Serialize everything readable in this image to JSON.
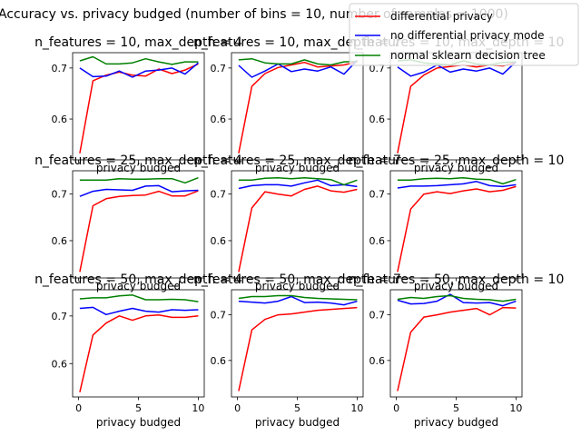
{
  "figure_title": "Accuracy vs. privacy budged (number of bins = 10, number of samples = 1000)",
  "legend": {
    "placement": "top-right",
    "entries": [
      {
        "label": "differential privacy",
        "color": "#ff0000"
      },
      {
        "label": "no differential privacy mode",
        "color": "#0000ff"
      },
      {
        "label": "normal sklearn decision tree",
        "color": "#008000"
      }
    ]
  },
  "colors": {
    "dp": "#ff0000",
    "nodp": "#0000ff",
    "sk": "#008000"
  },
  "chart_data": [
    {
      "type": "line",
      "title": "n_features = 10, max_depth = 4",
      "xlabel": "privacy budged",
      "ylabel": "",
      "xlim": [
        -0.5,
        10.5
      ],
      "ylim": [
        0.52,
        0.73
      ],
      "yticks": [
        0.6,
        0.7
      ],
      "xticks": [
        0,
        5,
        10
      ],
      "x": [
        0.1,
        1.2,
        2.3,
        3.4,
        4.5,
        5.6,
        6.7,
        7.8,
        8.9,
        10.0
      ],
      "series": [
        {
          "name": "differential privacy",
          "values": [
            0.533,
            0.675,
            0.686,
            0.692,
            0.686,
            0.684,
            0.698,
            0.689,
            0.696,
            0.708
          ]
        },
        {
          "name": "no differential privacy mode",
          "values": [
            0.7,
            0.683,
            0.684,
            0.694,
            0.682,
            0.694,
            0.696,
            0.7,
            0.688,
            0.71
          ]
        },
        {
          "name": "normal sklearn decision tree",
          "values": [
            0.714,
            0.722,
            0.708,
            0.708,
            0.71,
            0.718,
            0.712,
            0.707,
            0.712,
            0.712
          ]
        }
      ]
    },
    {
      "type": "line",
      "title": "n_features = 10, max_depth = 7",
      "xlabel": "privacy budged",
      "ylabel": "",
      "xlim": [
        -0.5,
        10.5
      ],
      "ylim": [
        0.52,
        0.73
      ],
      "yticks": [
        0.6,
        0.7
      ],
      "xticks": [
        0,
        5,
        10
      ],
      "x": [
        0.1,
        1.2,
        2.3,
        3.4,
        4.5,
        5.6,
        6.7,
        7.8,
        8.9,
        10.0
      ],
      "series": [
        {
          "name": "differential privacy",
          "values": [
            0.533,
            0.664,
            0.689,
            0.701,
            0.706,
            0.711,
            0.702,
            0.704,
            0.706,
            0.712
          ]
        },
        {
          "name": "no differential privacy mode",
          "values": [
            0.705,
            0.682,
            0.694,
            0.708,
            0.693,
            0.698,
            0.694,
            0.702,
            0.688,
            0.715
          ]
        },
        {
          "name": "normal sklearn decision tree",
          "values": [
            0.716,
            0.718,
            0.71,
            0.708,
            0.708,
            0.716,
            0.708,
            0.706,
            0.712,
            0.713
          ]
        }
      ]
    },
    {
      "type": "line",
      "title": "n_features = 10, max_depth = 10",
      "xlabel": "privacy budged",
      "ylabel": "",
      "xlim": [
        -0.5,
        10.5
      ],
      "ylim": [
        0.52,
        0.73
      ],
      "yticks": [
        0.6,
        0.7
      ],
      "xticks": [
        0,
        5,
        10
      ],
      "x": [
        0.1,
        1.2,
        2.3,
        3.4,
        4.5,
        5.6,
        6.7,
        7.8,
        8.9,
        10.0
      ],
      "series": [
        {
          "name": "differential privacy",
          "values": [
            0.533,
            0.664,
            0.686,
            0.7,
            0.703,
            0.706,
            0.702,
            0.706,
            0.704,
            0.711
          ]
        },
        {
          "name": "no differential privacy mode",
          "values": [
            0.702,
            0.684,
            0.692,
            0.706,
            0.692,
            0.698,
            0.694,
            0.7,
            0.688,
            0.712
          ]
        },
        {
          "name": "normal sklearn decision tree",
          "values": [
            0.714,
            0.716,
            0.71,
            0.708,
            0.706,
            0.714,
            0.708,
            0.706,
            0.711,
            0.712
          ]
        }
      ]
    },
    {
      "type": "line",
      "title": "n_features = 25, max_depth = 4",
      "xlabel": "privacy budged",
      "ylabel": "",
      "xlim": [
        -0.5,
        10.5
      ],
      "ylim": [
        0.52,
        0.75
      ],
      "yticks": [
        0.6,
        0.7
      ],
      "xticks": [
        0,
        5,
        10
      ],
      "x": [
        0.1,
        1.2,
        2.3,
        3.4,
        4.5,
        5.6,
        6.7,
        7.8,
        8.9,
        10.0
      ],
      "series": [
        {
          "name": "differential privacy",
          "values": [
            0.533,
            0.675,
            0.69,
            0.695,
            0.697,
            0.698,
            0.706,
            0.696,
            0.696,
            0.707
          ]
        },
        {
          "name": "no differential privacy mode",
          "values": [
            0.695,
            0.706,
            0.71,
            0.709,
            0.708,
            0.717,
            0.718,
            0.705,
            0.707,
            0.708
          ]
        },
        {
          "name": "normal sklearn decision tree",
          "values": [
            0.73,
            0.73,
            0.73,
            0.733,
            0.732,
            0.732,
            0.733,
            0.733,
            0.724,
            0.735
          ]
        }
      ]
    },
    {
      "type": "line",
      "title": "n_features = 25, max_depth = 7",
      "xlabel": "privacy budged",
      "ylabel": "",
      "xlim": [
        -0.5,
        10.5
      ],
      "ylim": [
        0.52,
        0.75
      ],
      "yticks": [
        0.6,
        0.7
      ],
      "xticks": [
        0,
        5,
        10
      ],
      "x": [
        0.1,
        1.2,
        2.3,
        3.4,
        4.5,
        5.6,
        6.7,
        7.8,
        8.9,
        10.0
      ],
      "series": [
        {
          "name": "differential privacy",
          "values": [
            0.533,
            0.67,
            0.705,
            0.7,
            0.696,
            0.71,
            0.717,
            0.707,
            0.704,
            0.71
          ]
        },
        {
          "name": "no differential privacy mode",
          "values": [
            0.712,
            0.718,
            0.72,
            0.72,
            0.717,
            0.724,
            0.73,
            0.718,
            0.72,
            0.716
          ]
        },
        {
          "name": "normal sklearn decision tree",
          "values": [
            0.73,
            0.73,
            0.734,
            0.735,
            0.733,
            0.735,
            0.733,
            0.731,
            0.72,
            0.73
          ]
        }
      ]
    },
    {
      "type": "line",
      "title": "n_features = 25, max_depth = 10",
      "xlabel": "privacy budged",
      "ylabel": "",
      "xlim": [
        -0.5,
        10.5
      ],
      "ylim": [
        0.52,
        0.75
      ],
      "yticks": [
        0.6,
        0.7
      ],
      "xticks": [
        0,
        5,
        10
      ],
      "x": [
        0.1,
        1.2,
        2.3,
        3.4,
        4.5,
        5.6,
        6.7,
        7.8,
        8.9,
        10.0
      ],
      "series": [
        {
          "name": "differential privacy",
          "values": [
            0.533,
            0.668,
            0.7,
            0.705,
            0.701,
            0.707,
            0.711,
            0.705,
            0.708,
            0.716
          ]
        },
        {
          "name": "no differential privacy mode",
          "values": [
            0.713,
            0.717,
            0.717,
            0.718,
            0.72,
            0.722,
            0.727,
            0.718,
            0.716,
            0.72
          ]
        },
        {
          "name": "normal sklearn decision tree",
          "values": [
            0.73,
            0.73,
            0.733,
            0.734,
            0.733,
            0.735,
            0.732,
            0.731,
            0.722,
            0.731
          ]
        }
      ]
    },
    {
      "type": "line",
      "title": "n_features = 50, max_depth = 4",
      "xlabel": "privacy budged",
      "ylabel": "",
      "xlim": [
        -0.5,
        10.5
      ],
      "ylim": [
        0.53,
        0.755
      ],
      "yticks": [
        0.6,
        0.7
      ],
      "xticks": [
        0,
        5,
        10
      ],
      "x": [
        0.1,
        1.2,
        2.3,
        3.4,
        4.5,
        5.6,
        6.7,
        7.8,
        8.9,
        10.0
      ],
      "series": [
        {
          "name": "differential privacy",
          "values": [
            0.54,
            0.66,
            0.685,
            0.7,
            0.691,
            0.7,
            0.702,
            0.697,
            0.697,
            0.7
          ]
        },
        {
          "name": "no differential privacy mode",
          "values": [
            0.716,
            0.718,
            0.703,
            0.71,
            0.716,
            0.71,
            0.708,
            0.713,
            0.712,
            0.713
          ]
        },
        {
          "name": "normal sklearn decision tree",
          "values": [
            0.736,
            0.738,
            0.738,
            0.742,
            0.744,
            0.734,
            0.734,
            0.735,
            0.734,
            0.73
          ]
        }
      ]
    },
    {
      "type": "line",
      "title": "n_features = 50, max_depth = 7",
      "xlabel": "privacy budged",
      "ylabel": "",
      "xlim": [
        -0.5,
        10.5
      ],
      "ylim": [
        0.52,
        0.755
      ],
      "yticks": [
        0.6,
        0.7
      ],
      "xticks": [
        0,
        5,
        10
      ],
      "x": [
        0.1,
        1.2,
        2.3,
        3.4,
        4.5,
        5.6,
        6.7,
        7.8,
        8.9,
        10.0
      ],
      "series": [
        {
          "name": "differential privacy",
          "values": [
            0.533,
            0.667,
            0.69,
            0.7,
            0.702,
            0.706,
            0.71,
            0.712,
            0.714,
            0.716
          ]
        },
        {
          "name": "no differential privacy mode",
          "values": [
            0.73,
            0.728,
            0.726,
            0.73,
            0.74,
            0.727,
            0.728,
            0.726,
            0.722,
            0.73
          ]
        },
        {
          "name": "normal sklearn decision tree",
          "values": [
            0.736,
            0.74,
            0.74,
            0.742,
            0.742,
            0.738,
            0.736,
            0.735,
            0.734,
            0.733
          ]
        }
      ]
    },
    {
      "type": "line",
      "title": "n_features = 50, max_depth = 10",
      "xlabel": "privacy budged",
      "ylabel": "",
      "xlim": [
        -0.5,
        10.5
      ],
      "ylim": [
        0.52,
        0.755
      ],
      "yticks": [
        0.6,
        0.7
      ],
      "xticks": [
        0,
        5,
        10
      ],
      "x": [
        0.1,
        1.2,
        2.3,
        3.4,
        4.5,
        5.6,
        6.7,
        7.8,
        8.9,
        10.0
      ],
      "series": [
        {
          "name": "differential privacy",
          "values": [
            0.533,
            0.662,
            0.695,
            0.7,
            0.706,
            0.71,
            0.714,
            0.7,
            0.716,
            0.715
          ]
        },
        {
          "name": "no differential privacy mode",
          "values": [
            0.732,
            0.724,
            0.725,
            0.73,
            0.745,
            0.727,
            0.726,
            0.727,
            0.72,
            0.73
          ]
        },
        {
          "name": "normal sklearn decision tree",
          "values": [
            0.734,
            0.738,
            0.736,
            0.74,
            0.742,
            0.736,
            0.734,
            0.733,
            0.73,
            0.734
          ]
        }
      ]
    }
  ]
}
